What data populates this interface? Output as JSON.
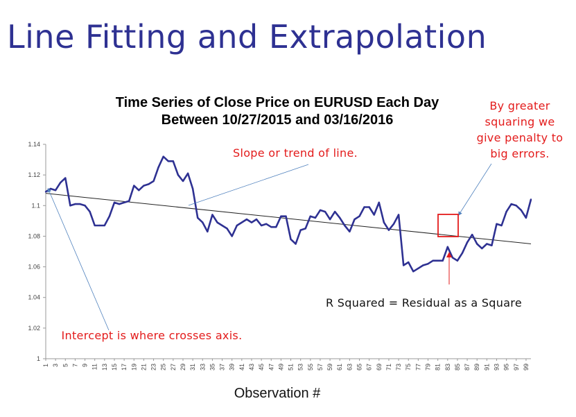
{
  "slide": {
    "title": "Line Fitting and Extrapolation"
  },
  "annotations": {
    "slope": "Slope or trend of line.",
    "penalty": "By greater squaring we give penalty to big errors.",
    "intercept": "Intercept is where crosses axis.",
    "r_squared": "R Squared = Residual as a Square"
  },
  "colors": {
    "title": "#2e3192",
    "series": "#2e3192",
    "annotation": "#e31b1b",
    "pointer": "#4f81bd"
  },
  "chart_data": {
    "type": "line",
    "title_lines": [
      "Time Series of Close Price on EURUSD Each Day",
      "Between 10/27/2015 and 03/16/2016"
    ],
    "xlabel": "Observation #",
    "ylabel": "",
    "ylim": [
      1,
      1.14
    ],
    "yticks": [
      "1",
      "1.02",
      "1.04",
      "1.06",
      "1.08",
      "1.1",
      "1.12",
      "1.14"
    ],
    "xticks": [
      "1",
      "3",
      "5",
      "7",
      "9",
      "11",
      "13",
      "15",
      "17",
      "19",
      "21",
      "23",
      "25",
      "27",
      "29",
      "31",
      "33",
      "35",
      "37",
      "39",
      "41",
      "43",
      "45",
      "47",
      "49",
      "51",
      "53",
      "55",
      "57",
      "59",
      "61",
      "63",
      "65",
      "67",
      "69",
      "71",
      "73",
      "75",
      "77",
      "79",
      "81",
      "83",
      "85",
      "87",
      "89",
      "91",
      "93",
      "95",
      "97",
      "99"
    ],
    "grid": false,
    "x": [
      1,
      2,
      3,
      4,
      5,
      6,
      7,
      8,
      9,
      10,
      11,
      12,
      13,
      14,
      15,
      16,
      17,
      18,
      19,
      20,
      21,
      22,
      23,
      24,
      25,
      26,
      27,
      28,
      29,
      30,
      31,
      32,
      33,
      34,
      35,
      36,
      37,
      38,
      39,
      40,
      41,
      42,
      43,
      44,
      45,
      46,
      47,
      48,
      49,
      50,
      51,
      52,
      53,
      54,
      55,
      56,
      57,
      58,
      59,
      60,
      61,
      62,
      63,
      64,
      65,
      66,
      67,
      68,
      69,
      70,
      71,
      72,
      73,
      74,
      75,
      76,
      77,
      78,
      79,
      80,
      81,
      82,
      83,
      84,
      85,
      86,
      87,
      88,
      89,
      90,
      91,
      92,
      93,
      94,
      95,
      96,
      97,
      98,
      99,
      100
    ],
    "series": [
      {
        "values": [
          1.109,
          1.111,
          1.11,
          1.115,
          1.118,
          1.1,
          1.101,
          1.101,
          1.1,
          1.096,
          1.087,
          1.087,
          1.087,
          1.093,
          1.102,
          1.101,
          1.102,
          1.103,
          1.113,
          1.11,
          1.113,
          1.114,
          1.116,
          1.125,
          1.132,
          1.129,
          1.129,
          1.12,
          1.116,
          1.121,
          1.111,
          1.092,
          1.089,
          1.083,
          1.094,
          1.089,
          1.087,
          1.085,
          1.08,
          1.087,
          1.089,
          1.091,
          1.089,
          1.091,
          1.087,
          1.088,
          1.086,
          1.086,
          1.093,
          1.093,
          1.078,
          1.075,
          1.084,
          1.085,
          1.093,
          1.092,
          1.097,
          1.096,
          1.091,
          1.096,
          1.092,
          1.087,
          1.083,
          1.091,
          1.093,
          1.099,
          1.099,
          1.094,
          1.102,
          1.089,
          1.084,
          1.088,
          1.094,
          1.061,
          1.063,
          1.057,
          1.059,
          1.061,
          1.062,
          1.064,
          1.064,
          1.064,
          1.073,
          1.066,
          1.064,
          1.069,
          1.076,
          1.081,
          1.075,
          1.072,
          1.075,
          1.074,
          1.088,
          1.087,
          1.096,
          1.101,
          1.1,
          1.097,
          1.092,
          1.104
        ]
      }
    ],
    "trend_line": {
      "start": [
        1,
        1.108
      ],
      "end": [
        100,
        1.075
      ]
    }
  }
}
